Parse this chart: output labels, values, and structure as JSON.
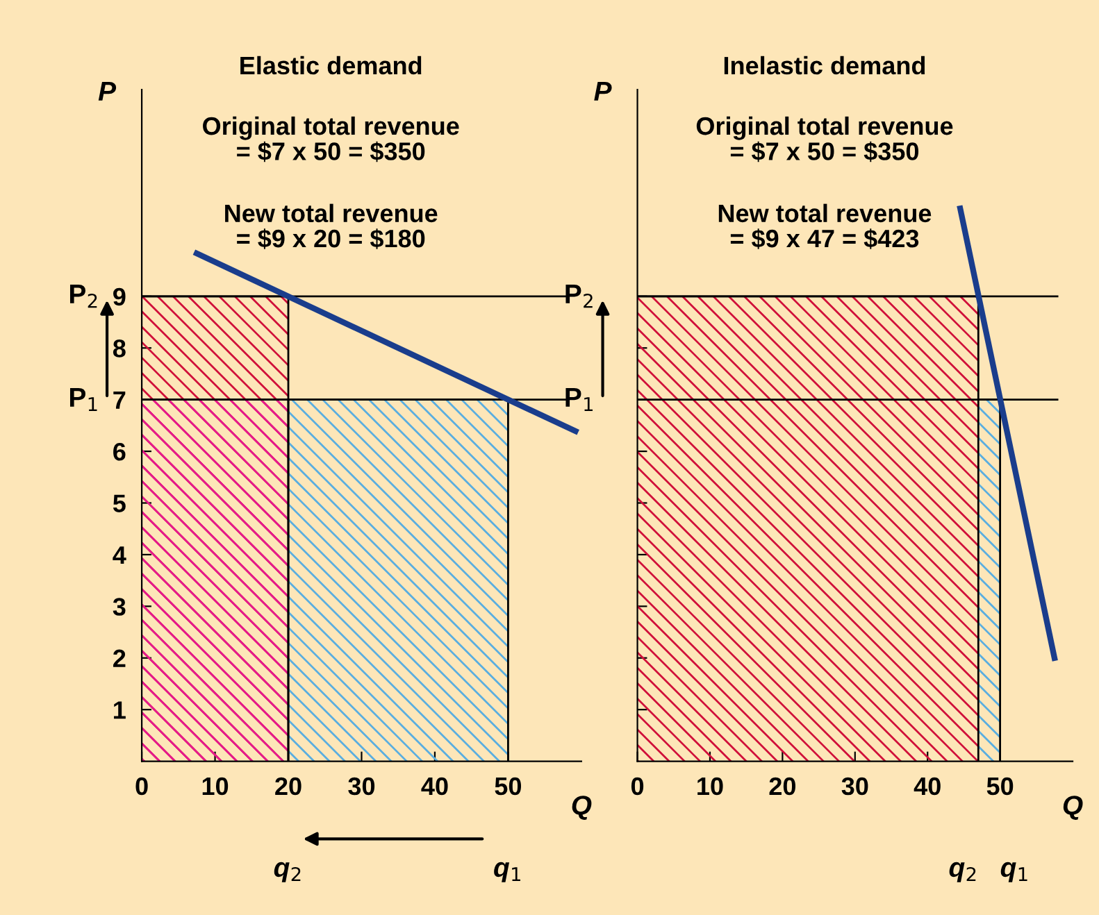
{
  "chart_data": [
    {
      "type": "area",
      "title": "Elastic demand",
      "xlabel": "Q",
      "ylabel": "P",
      "annotations": [
        "Original total revenue\n= $7 x 50 = $350",
        "New total revenue\n= $9 x 20 = $180",
        "q$_{2}$",
        "q$_{1}$"
      ],
      "series": [
        {
          "x": [
            0,
            20
          ],
          "values": [
            9,
            9
          ],
          "color": "#d0103a"
        },
        {
          "x": [
            20,
            50
          ],
          "values": [
            7,
            7
          ],
          "color": "#5aaee0"
        },
        {
          "x": [
            0,
            20
          ],
          "values": [
            7,
            7
          ],
          "color": "#e6198c"
        },
        {
          "type": "line",
          "x": [
            7.5,
            59.2
          ],
          "values": [
            9.83,
            6.39
          ],
          "color": "#1a3d8c"
        }
      ],
      "ref_lines": [
        {
          "axis": "y",
          "value": 9,
          "label": "P$_{2}$"
        },
        {
          "axis": "y",
          "value": 7,
          "label": "P$_{1}$"
        }
      ],
      "xlim": [
        0,
        60
      ],
      "ylim": [
        0,
        13
      ],
      "xticks": [
        0,
        10,
        20,
        30,
        40,
        50
      ],
      "yticks": [
        1,
        2,
        3,
        4,
        5,
        6,
        7,
        8,
        9
      ]
    },
    {
      "type": "area",
      "title": "Inelastic demand",
      "xlabel": "Q",
      "ylabel": "P",
      "annotations": [
        "Original total revenue\n= $7 x 50 = $350",
        "New total revenue\n= $9 x 47 = $423",
        "q$_{2}$",
        "q$_{1}$"
      ],
      "tick_labels": "x",
      "series": [
        {
          "x": [
            0,
            47
          ],
          "values": [
            9,
            9
          ],
          "color": "#d0103a"
        },
        {
          "x": [
            47,
            50
          ],
          "values": [
            7,
            7
          ],
          "color": "#5aaee0"
        },
        {
          "type": "line",
          "x": [
            44.5,
            57.5
          ],
          "values": [
            10.7,
            2
          ],
          "color": "#1a3d8c"
        }
      ],
      "ref_lines": [
        {
          "axis": "y",
          "value": 9,
          "label": "P$_{2}$"
        },
        {
          "axis": "y",
          "value": 7,
          "label": "P$_{1}$"
        }
      ],
      "xlim": [
        0,
        60
      ],
      "ylim": [
        0,
        13
      ],
      "xticks": [
        0,
        10,
        20,
        30,
        40,
        50
      ],
      "yticks": [
        1,
        2,
        3,
        4,
        5,
        6,
        7,
        8,
        9
      ]
    }
  ]
}
